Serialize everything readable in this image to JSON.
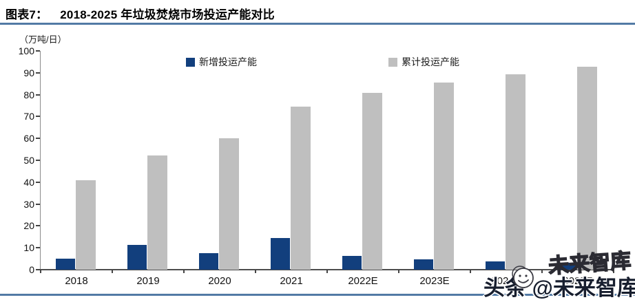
{
  "header": {
    "tag": "图表7：",
    "title": "2018-2025 年垃圾焚烧市场投运产能对比"
  },
  "chart_data": {
    "type": "bar",
    "title": "2018-2025 年垃圾焚烧市场投运产能对比",
    "unit_label": "（万吨/日）",
    "categories": [
      "2018",
      "2019",
      "2020",
      "2021",
      "2022E",
      "2023E",
      "2024E",
      "2025E"
    ],
    "series": [
      {
        "name": "新增投运产能",
        "color": "#123f7d",
        "values": [
          5.0,
          11.2,
          7.6,
          14.6,
          6.3,
          4.6,
          3.8,
          3.2
        ]
      },
      {
        "name": "累计投运产能",
        "color": "#bfbfbf",
        "values": [
          41.0,
          52.3,
          60.0,
          74.5,
          80.8,
          85.5,
          89.3,
          92.8
        ]
      }
    ],
    "xlabel": "",
    "ylabel": "（万吨/日）",
    "ylim": [
      0,
      100
    ],
    "ytick_step": 10,
    "grid": false,
    "legend_position": "top"
  },
  "watermark": {
    "outline_text": "未来智库",
    "solid_text": "头条 @未来智库",
    "smiley_icon": "smiley-face"
  },
  "colors": {
    "accent_rule": "#527aa5",
    "axis_dark": "#4d4d4d",
    "axis_light": "#8a8a8a",
    "bar_new": "#123f7d",
    "bar_cumulative": "#bfbfbf",
    "watermark_text": "#171e2e"
  }
}
